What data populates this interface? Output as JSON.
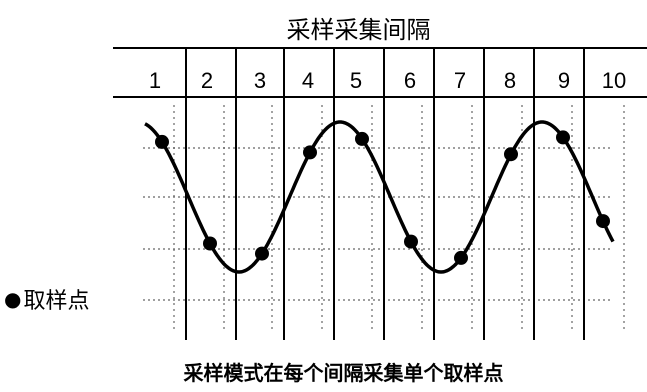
{
  "diagram": {
    "title": "采样采集间隔",
    "interval_labels": [
      "1",
      "2",
      "3",
      "4",
      "5",
      "6",
      "7",
      "8",
      "9",
      "10"
    ],
    "legend_label": "取样点",
    "legend_marker": "●",
    "caption": "采样模式在每个间隔采集单个取样点",
    "waveform": "sine",
    "colors": {
      "line": "#000000",
      "grid": "#666666",
      "background": "#ffffff"
    }
  }
}
